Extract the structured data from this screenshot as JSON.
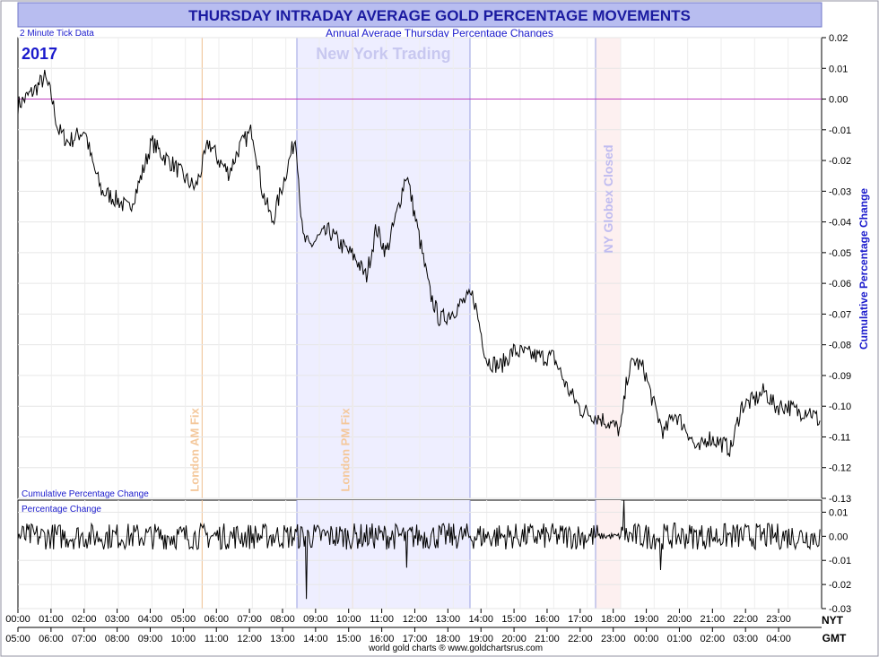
{
  "title": "THURSDAY INTRADAY AVERAGE GOLD PERCENTAGE MOVEMENTS",
  "subtitle": "Annual Average Thursday Percentage Changes",
  "tick_note": "2 Minute Tick Data",
  "year_label": "2017",
  "footer": "world gold charts ® www.goldchartsrus.com",
  "colors": {
    "title": "#1a1aa0",
    "blue_text": "#1a1acc",
    "header_bg": "#b8bdf0",
    "ny_band": "#eeeeff",
    "ny_band_edge": "#9aa0e0",
    "globex_band": "#fdf0f0",
    "fix_line": "#f0c090",
    "zero_line": "#c040c0",
    "series": "#000000"
  },
  "chart_data": [
    {
      "type": "line",
      "ylabel": "Cumulative Percentage Change",
      "panel_label": "Cumulative Percentage Change",
      "ylim": [
        -0.13,
        0.02
      ],
      "yticks": [
        "0.02",
        "0.01",
        "0.00",
        "-0.01",
        "-0.02",
        "-0.03",
        "-0.04",
        "-0.05",
        "-0.06",
        "-0.07",
        "-0.08",
        "-0.09",
        "-0.10",
        "-0.11",
        "-0.12",
        "-0.13"
      ],
      "x_hours_nyt": [
        0,
        0.5,
        0.8,
        1.0,
        1.2,
        1.5,
        2.0,
        2.2,
        2.5,
        3.0,
        3.3,
        3.6,
        4.0,
        4.3,
        4.7,
        5.0,
        5.3,
        5.5,
        5.7,
        6.0,
        6.3,
        6.6,
        7.0,
        7.3,
        7.6,
        7.9,
        8.1,
        8.3,
        8.5,
        8.7,
        9.0,
        9.3,
        9.6,
        9.9,
        10.1,
        10.4,
        10.7,
        11.0,
        11.3,
        11.6,
        12.0,
        12.3,
        12.6,
        13.0,
        13.3,
        13.6,
        14.0,
        14.4,
        14.8,
        15.2,
        15.6,
        16.0,
        16.4,
        16.8,
        17.2,
        17.6,
        18.0,
        18.2,
        18.4,
        18.7,
        19.0,
        19.3,
        19.6,
        20.0,
        20.3,
        20.6,
        21.0,
        21.3,
        21.6,
        22.0,
        22.3,
        22.6,
        23.0,
        23.3,
        23.6,
        23.95
      ],
      "values": [
        -0.002,
        0.003,
        0.007,
        0.001,
        -0.01,
        -0.014,
        -0.01,
        -0.02,
        -0.03,
        -0.033,
        -0.036,
        -0.028,
        -0.014,
        -0.018,
        -0.022,
        -0.026,
        -0.029,
        -0.022,
        -0.014,
        -0.02,
        -0.024,
        -0.016,
        -0.01,
        -0.03,
        -0.04,
        -0.028,
        -0.02,
        -0.012,
        -0.045,
        -0.048,
        -0.045,
        -0.043,
        -0.047,
        -0.05,
        -0.052,
        -0.058,
        -0.042,
        -0.05,
        -0.038,
        -0.024,
        -0.046,
        -0.063,
        -0.072,
        -0.069,
        -0.066,
        -0.064,
        -0.085,
        -0.087,
        -0.082,
        -0.083,
        -0.084,
        -0.084,
        -0.094,
        -0.101,
        -0.103,
        -0.105,
        -0.108,
        -0.09,
        -0.085,
        -0.088,
        -0.1,
        -0.109,
        -0.102,
        -0.108,
        -0.115,
        -0.11,
        -0.112,
        -0.114,
        -0.1,
        -0.098,
        -0.095,
        -0.1,
        -0.1,
        -0.102,
        -0.101,
        -0.105
      ]
    },
    {
      "type": "line",
      "panel_label": "Percentage Change",
      "ylim": [
        -0.03,
        0.015
      ],
      "yticks": [
        "0.01",
        "0.00",
        "-0.01",
        "-0.02",
        "-0.03"
      ],
      "spikes": [
        {
          "x": 8.6,
          "y": -0.026
        },
        {
          "x": 18.1,
          "y": 0.015
        },
        {
          "x": 11.6,
          "y": -0.013
        },
        {
          "x": 19.2,
          "y": -0.014
        }
      ]
    }
  ],
  "x_axis_nyt": {
    "label": "NYT",
    "ticks": [
      "00:00",
      "01:00",
      "02:00",
      "03:00",
      "04:00",
      "05:00",
      "06:00",
      "07:00",
      "08:00",
      "09:00",
      "10:00",
      "11:00",
      "12:00",
      "13:00",
      "14:00",
      "15:00",
      "16:00",
      "17:00",
      "18:00",
      "19:00",
      "20:00",
      "21:00",
      "22:00",
      "23:00"
    ]
  },
  "x_axis_gmt": {
    "label": "GMT",
    "ticks": [
      "05:00",
      "06:00",
      "07:00",
      "08:00",
      "09:00",
      "10:00",
      "11:00",
      "12:00",
      "13:00",
      "14:00",
      "15:00",
      "16:00",
      "17:00",
      "18:00",
      "19:00",
      "20:00",
      "21:00",
      "22:00",
      "23:00",
      "00:00",
      "01:00",
      "02:00",
      "03:00",
      "04:00"
    ]
  },
  "annotations": {
    "ny_trading": {
      "label": "New York Trading",
      "start": 8.33,
      "end": 13.5
    },
    "globex": {
      "label": "NY Globex Closed",
      "start": 17.25,
      "end": 18.0
    },
    "am_fix": {
      "label": "London AM Fix",
      "x": 5.5
    },
    "pm_fix": {
      "label": "London PM Fix",
      "x": 10.0
    }
  }
}
